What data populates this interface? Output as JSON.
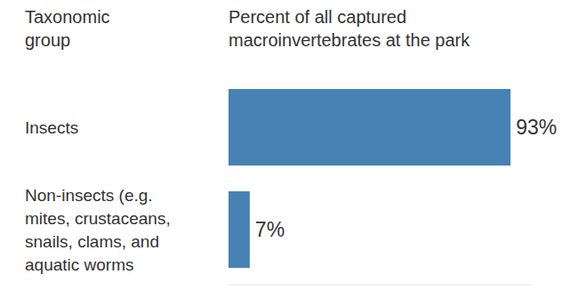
{
  "chart_data": {
    "type": "bar",
    "orientation": "horizontal",
    "title": "Percent of all captured macroinvertebrates at the park",
    "y_label": "Taxonomic group",
    "categories": [
      "Insects",
      "Non-insects (e.g. mites, crustaceans, snails, clams, and aquatic worms"
    ],
    "values": [
      93,
      7
    ],
    "value_labels": [
      "93%",
      "7%"
    ],
    "color": "#4682b4",
    "xlim": [
      0,
      100
    ],
    "xticks": [],
    "data_labels": true,
    "tick_labels": false,
    "grid": false
  }
}
